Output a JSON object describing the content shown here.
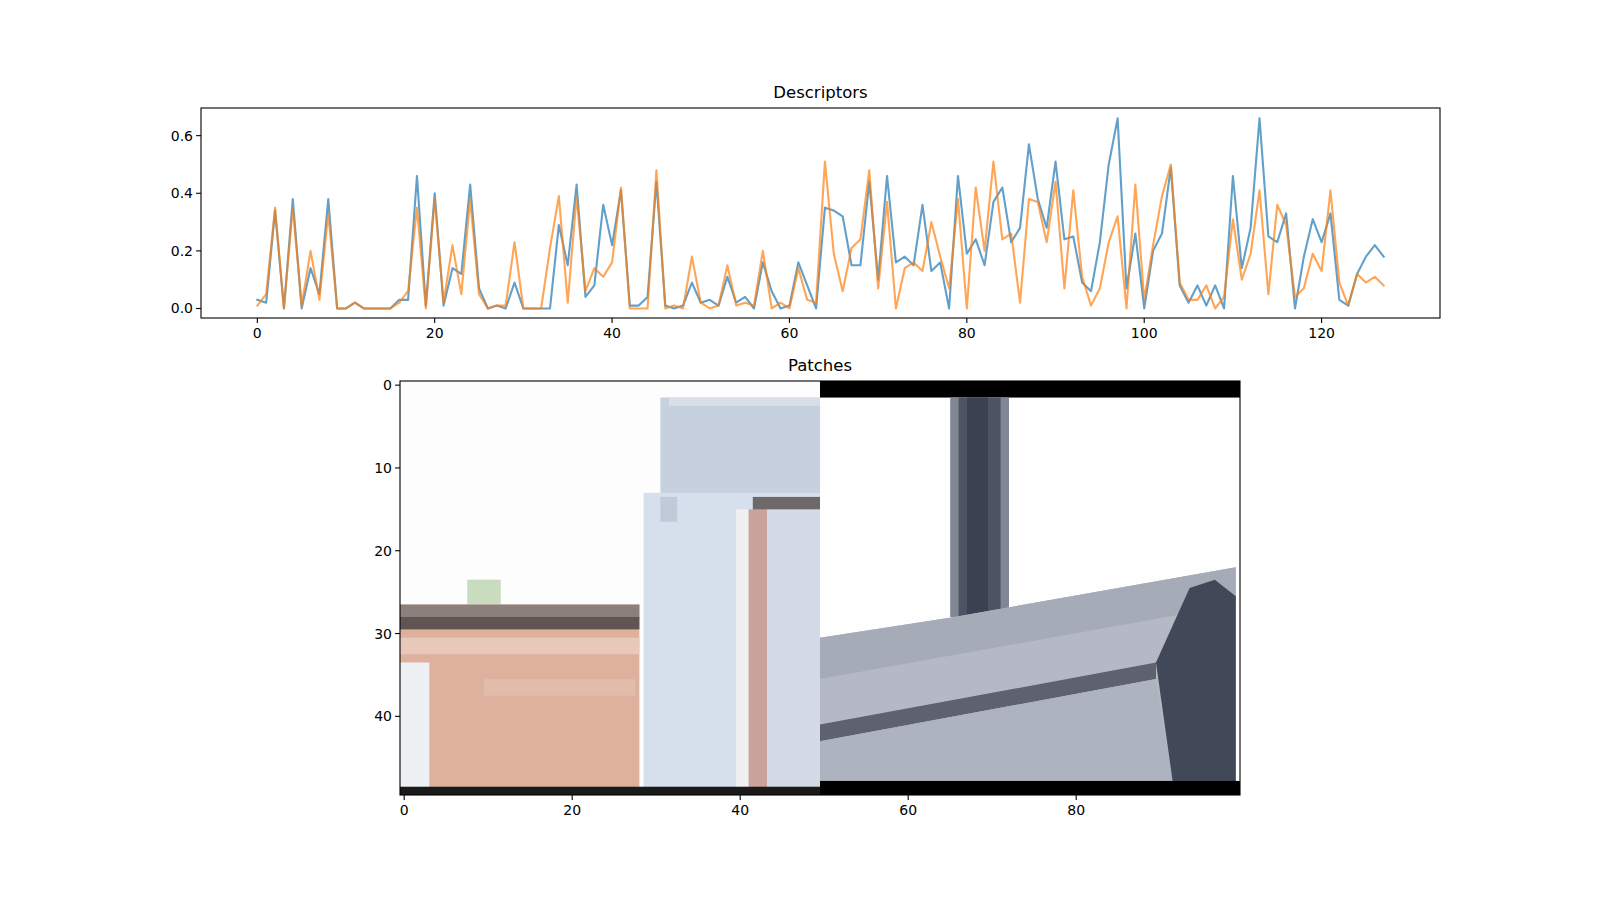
{
  "chart_data": [
    {
      "type": "line",
      "title": "Descriptors",
      "x": [
        0,
        1,
        2,
        3,
        4,
        5,
        6,
        7,
        8,
        9,
        10,
        11,
        12,
        13,
        14,
        15,
        16,
        17,
        18,
        19,
        20,
        21,
        22,
        23,
        24,
        25,
        26,
        27,
        28,
        29,
        30,
        31,
        32,
        33,
        34,
        35,
        36,
        37,
        38,
        39,
        40,
        41,
        42,
        43,
        44,
        45,
        46,
        47,
        48,
        49,
        50,
        51,
        52,
        53,
        54,
        55,
        56,
        57,
        58,
        59,
        60,
        61,
        62,
        63,
        64,
        65,
        66,
        67,
        68,
        69,
        70,
        71,
        72,
        73,
        74,
        75,
        76,
        77,
        78,
        79,
        80,
        81,
        82,
        83,
        84,
        85,
        86,
        87,
        88,
        89,
        90,
        91,
        92,
        93,
        94,
        95,
        96,
        97,
        98,
        99,
        100,
        101,
        102,
        103,
        104,
        105,
        106,
        107,
        108,
        109,
        110,
        111,
        112,
        113,
        114,
        115,
        116,
        117,
        118,
        119,
        120,
        121,
        122,
        123,
        124,
        125,
        126,
        127
      ],
      "series": [
        {
          "color": "#1f77b4",
          "values": [
            0.03,
            0.02,
            0.34,
            0.0,
            0.38,
            0.0,
            0.14,
            0.05,
            0.38,
            0.0,
            0.0,
            0.02,
            0.0,
            0.0,
            0.0,
            0.0,
            0.03,
            0.03,
            0.46,
            0.01,
            0.4,
            0.01,
            0.14,
            0.12,
            0.43,
            0.07,
            0.0,
            0.01,
            0.0,
            0.09,
            0.0,
            0.0,
            0.0,
            0.0,
            0.29,
            0.15,
            0.43,
            0.04,
            0.08,
            0.36,
            0.22,
            0.41,
            0.01,
            0.01,
            0.04,
            0.44,
            0.01,
            0.0,
            0.01,
            0.09,
            0.02,
            0.03,
            0.01,
            0.11,
            0.02,
            0.04,
            0.0,
            0.16,
            0.06,
            0.0,
            0.01,
            0.16,
            0.08,
            0.0,
            0.35,
            0.34,
            0.32,
            0.15,
            0.15,
            0.44,
            0.1,
            0.46,
            0.16,
            0.18,
            0.15,
            0.36,
            0.13,
            0.16,
            0.0,
            0.46,
            0.19,
            0.24,
            0.15,
            0.37,
            0.42,
            0.23,
            0.28,
            0.57,
            0.38,
            0.28,
            0.51,
            0.24,
            0.25,
            0.09,
            0.06,
            0.23,
            0.5,
            0.66,
            0.07,
            0.26,
            0.0,
            0.2,
            0.26,
            0.49,
            0.08,
            0.02,
            0.08,
            0.01,
            0.08,
            0.0,
            0.46,
            0.14,
            0.28,
            0.66,
            0.25,
            0.23,
            0.33,
            0.0,
            0.18,
            0.31,
            0.23,
            0.33,
            0.03,
            0.01,
            0.12,
            0.18,
            0.22,
            0.18
          ]
        },
        {
          "color": "#ff7f0e",
          "values": [
            0.01,
            0.05,
            0.35,
            0.0,
            0.35,
            0.01,
            0.2,
            0.03,
            0.33,
            0.0,
            0.0,
            0.02,
            0.0,
            0.0,
            0.0,
            0.0,
            0.02,
            0.06,
            0.35,
            0.0,
            0.38,
            0.02,
            0.22,
            0.05,
            0.38,
            0.05,
            0.0,
            0.01,
            0.01,
            0.23,
            0.0,
            0.0,
            0.0,
            0.21,
            0.39,
            0.02,
            0.39,
            0.06,
            0.14,
            0.11,
            0.16,
            0.42,
            0.0,
            0.0,
            0.0,
            0.48,
            0.0,
            0.01,
            0.0,
            0.18,
            0.02,
            0.0,
            0.01,
            0.15,
            0.01,
            0.02,
            0.01,
            0.2,
            0.0,
            0.02,
            0.0,
            0.14,
            0.03,
            0.02,
            0.51,
            0.19,
            0.06,
            0.21,
            0.24,
            0.48,
            0.07,
            0.37,
            0.0,
            0.14,
            0.16,
            0.13,
            0.3,
            0.18,
            0.07,
            0.38,
            0.0,
            0.42,
            0.2,
            0.51,
            0.24,
            0.26,
            0.02,
            0.38,
            0.37,
            0.23,
            0.44,
            0.07,
            0.41,
            0.11,
            0.01,
            0.07,
            0.23,
            0.32,
            0.0,
            0.43,
            0.03,
            0.22,
            0.39,
            0.5,
            0.09,
            0.03,
            0.03,
            0.08,
            0.0,
            0.04,
            0.31,
            0.1,
            0.19,
            0.41,
            0.05,
            0.36,
            0.29,
            0.04,
            0.07,
            0.19,
            0.13,
            0.41,
            0.09,
            0.01,
            0.12,
            0.09,
            0.11,
            0.08
          ]
        }
      ],
      "xlim": [
        -6.35,
        133.35
      ],
      "ylim": [
        -0.033,
        0.696
      ],
      "xticks": [
        0,
        20,
        40,
        60,
        80,
        100,
        120
      ],
      "yticks": [
        {
          "value": 0,
          "label": "0.0"
        },
        0.2,
        0.4,
        0.6
      ]
    },
    {
      "type": "image",
      "title": "Patches",
      "xlim": [
        -0.5,
        99.5
      ],
      "ylim": [
        49.5,
        -0.5
      ],
      "xticks": [
        0,
        20,
        40,
        60,
        80
      ],
      "yticks": [
        0,
        10,
        20,
        30,
        40
      ]
    }
  ]
}
